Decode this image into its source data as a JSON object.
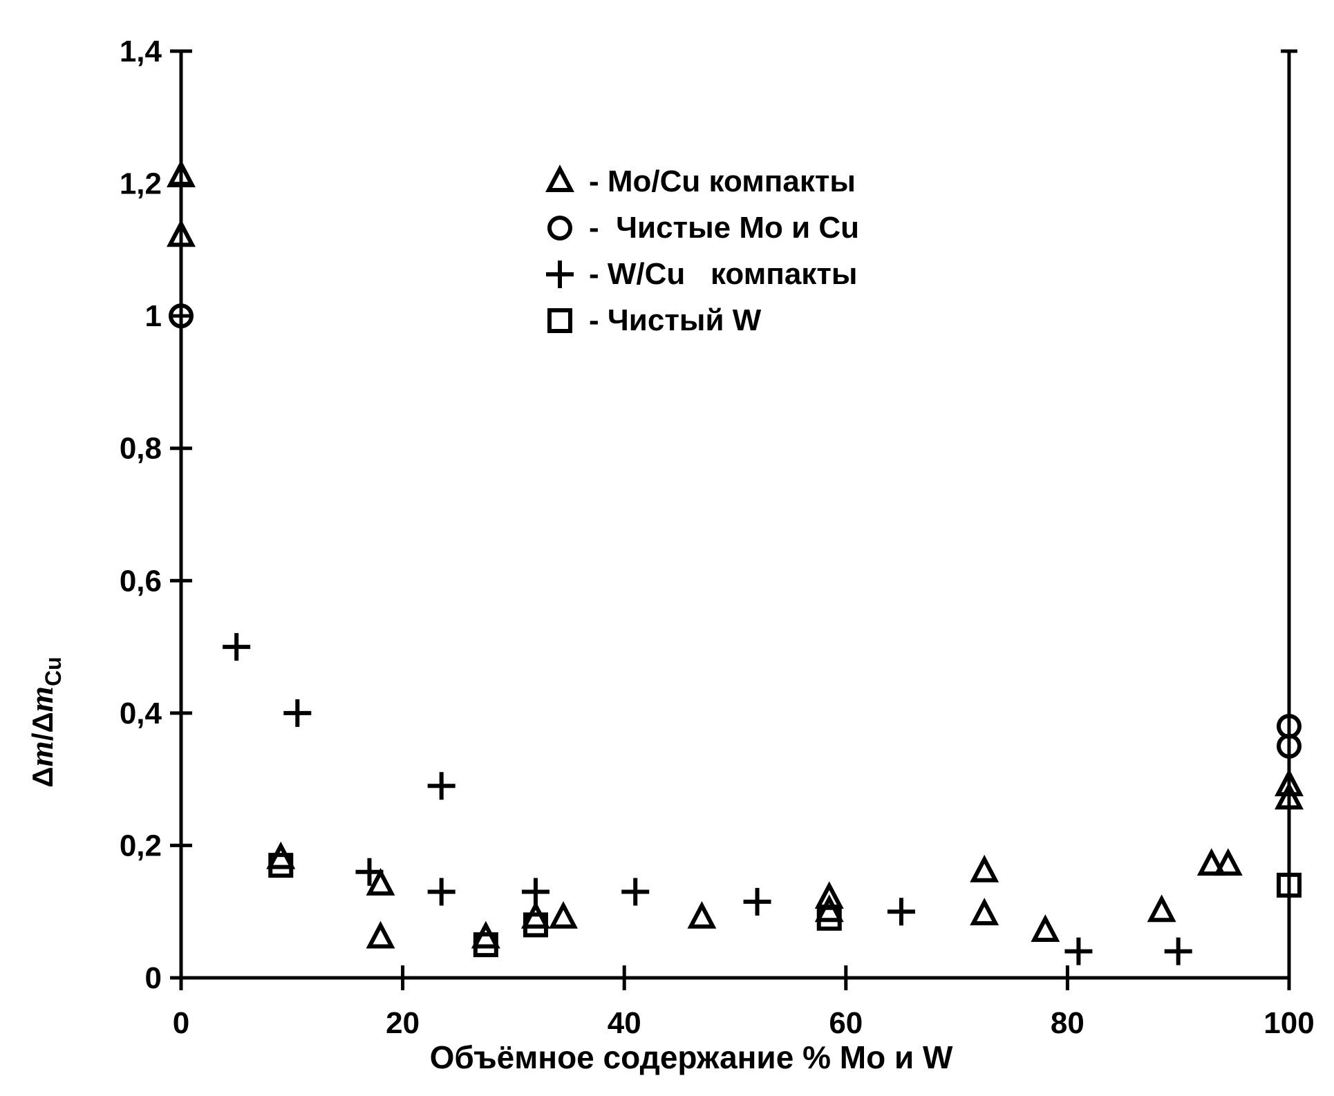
{
  "chart_data": {
    "type": "scatter",
    "xlabel": "Объёмное содержание %  Mo и W",
    "ylabel": {
      "delta1": "Δ",
      "m1": "m",
      "slash": "/",
      "delta2": "Δ",
      "m2": "m",
      "sub": "Cu"
    },
    "xlim": [
      0,
      100
    ],
    "ylim": [
      0,
      1.4
    ],
    "x_ticks": [
      {
        "value": 0,
        "label": "0"
      },
      {
        "value": 20,
        "label": "20"
      },
      {
        "value": 40,
        "label": "40"
      },
      {
        "value": 60,
        "label": "60"
      },
      {
        "value": 80,
        "label": "80"
      },
      {
        "value": 100,
        "label": "100"
      }
    ],
    "y_ticks": [
      {
        "value": 0,
        "label": "0"
      },
      {
        "value": 0.2,
        "label": "0,2"
      },
      {
        "value": 0.4,
        "label": "0,4"
      },
      {
        "value": 0.6,
        "label": "0,6"
      },
      {
        "value": 0.8,
        "label": "0,8"
      },
      {
        "value": 1.0,
        "label": "1"
      },
      {
        "value": 1.2,
        "label": "1,2"
      },
      {
        "value": 1.4,
        "label": "1,4"
      }
    ],
    "grid": false,
    "legend_position": "upper-center",
    "series": [
      {
        "name": "- Mo/Cu компакты",
        "marker": "triangle",
        "points": [
          {
            "x": 0,
            "y": 1.21
          },
          {
            "x": 0,
            "y": 1.12
          },
          {
            "x": 9,
            "y": 0.18
          },
          {
            "x": 18,
            "y": 0.14
          },
          {
            "x": 18,
            "y": 0.06
          },
          {
            "x": 27.5,
            "y": 0.06
          },
          {
            "x": 32,
            "y": 0.09
          },
          {
            "x": 34.5,
            "y": 0.09
          },
          {
            "x": 47,
            "y": 0.09
          },
          {
            "x": 58.5,
            "y": 0.12
          },
          {
            "x": 58.5,
            "y": 0.1
          },
          {
            "x": 72.5,
            "y": 0.16
          },
          {
            "x": 72.5,
            "y": 0.095
          },
          {
            "x": 78,
            "y": 0.07
          },
          {
            "x": 88.5,
            "y": 0.1
          },
          {
            "x": 93,
            "y": 0.17
          },
          {
            "x": 94.5,
            "y": 0.17
          },
          {
            "x": 100,
            "y": 0.29
          },
          {
            "x": 100,
            "y": 0.27
          }
        ]
      },
      {
        "name": "-  Чистые Mo и Cu",
        "marker": "circle",
        "points": [
          {
            "x": 0,
            "y": 1.0
          },
          {
            "x": 100,
            "y": 0.38
          },
          {
            "x": 100,
            "y": 0.35
          }
        ]
      },
      {
        "name": "- W/Cu   компакты",
        "marker": "plus",
        "points": [
          {
            "x": 5,
            "y": 0.5
          },
          {
            "x": 10.5,
            "y": 0.4
          },
          {
            "x": 23.5,
            "y": 0.29
          },
          {
            "x": 17,
            "y": 0.16
          },
          {
            "x": 23.5,
            "y": 0.13
          },
          {
            "x": 32,
            "y": 0.13
          },
          {
            "x": 41,
            "y": 0.13
          },
          {
            "x": 52,
            "y": 0.115
          },
          {
            "x": 65,
            "y": 0.1
          },
          {
            "x": 81,
            "y": 0.04
          },
          {
            "x": 90,
            "y": 0.04
          }
        ]
      },
      {
        "name": "- Чистый W",
        "marker": "square",
        "points": [
          {
            "x": 9,
            "y": 0.17
          },
          {
            "x": 27.5,
            "y": 0.05
          },
          {
            "x": 32,
            "y": 0.08
          },
          {
            "x": 58.5,
            "y": 0.09
          },
          {
            "x": 100,
            "y": 0.14
          }
        ]
      }
    ]
  }
}
